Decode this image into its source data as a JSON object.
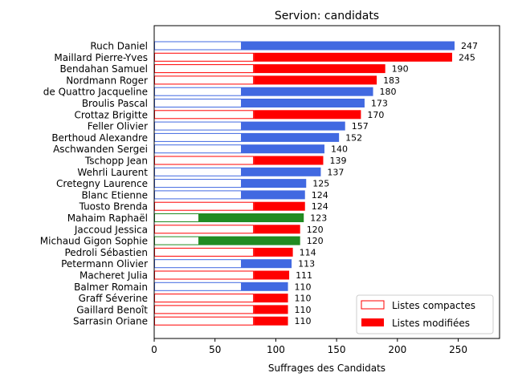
{
  "chart_data": {
    "type": "bar",
    "orientation": "horizontal",
    "title": "Servion: candidats",
    "xlabel": "Suffrages des Candidats",
    "ylabel": "",
    "xlim": [
      0,
      284
    ],
    "xticks": [
      0,
      50,
      100,
      150,
      200,
      250
    ],
    "grid": false,
    "legend_position": "lower right",
    "legend": [
      {
        "label": "Listes compactes",
        "style": "outline",
        "color": "#ff0000"
      },
      {
        "label": "Listes modifiées",
        "style": "filled",
        "color": "#ff0000"
      }
    ],
    "colors": {
      "blue": "#4169e1",
      "red": "#ff0000",
      "green": "#228b22"
    },
    "candidates": [
      {
        "name": "Ruch Daniel",
        "total": 247,
        "compact": 72,
        "color": "blue"
      },
      {
        "name": "Maillard Pierre-Yves",
        "total": 245,
        "compact": 82,
        "color": "red"
      },
      {
        "name": "Bendahan Samuel",
        "total": 190,
        "compact": 82,
        "color": "red"
      },
      {
        "name": "Nordmann Roger",
        "total": 183,
        "compact": 82,
        "color": "red"
      },
      {
        "name": "de Quattro Jacqueline",
        "total": 180,
        "compact": 72,
        "color": "blue"
      },
      {
        "name": "Broulis Pascal",
        "total": 173,
        "compact": 72,
        "color": "blue"
      },
      {
        "name": "Crottaz Brigitte",
        "total": 170,
        "compact": 82,
        "color": "red"
      },
      {
        "name": "Feller Olivier",
        "total": 157,
        "compact": 72,
        "color": "blue"
      },
      {
        "name": "Berthoud Alexandre",
        "total": 152,
        "compact": 72,
        "color": "blue"
      },
      {
        "name": "Aschwanden Sergei",
        "total": 140,
        "compact": 72,
        "color": "blue"
      },
      {
        "name": "Tschopp Jean",
        "total": 139,
        "compact": 82,
        "color": "red"
      },
      {
        "name": "Wehrli Laurent",
        "total": 137,
        "compact": 72,
        "color": "blue"
      },
      {
        "name": "Cretegny Laurence",
        "total": 125,
        "compact": 72,
        "color": "blue"
      },
      {
        "name": "Blanc Etienne",
        "total": 124,
        "compact": 72,
        "color": "blue"
      },
      {
        "name": "Tuosto Brenda",
        "total": 124,
        "compact": 82,
        "color": "red"
      },
      {
        "name": "Mahaim Raphaël",
        "total": 123,
        "compact": 37,
        "color": "green"
      },
      {
        "name": "Jaccoud Jessica",
        "total": 120,
        "compact": 82,
        "color": "red"
      },
      {
        "name": "Michaud Gigon Sophie",
        "total": 120,
        "compact": 37,
        "color": "green"
      },
      {
        "name": "Pedroli Sébastien",
        "total": 114,
        "compact": 82,
        "color": "red"
      },
      {
        "name": "Petermann Olivier",
        "total": 113,
        "compact": 72,
        "color": "blue"
      },
      {
        "name": "Macheret Julia",
        "total": 111,
        "compact": 82,
        "color": "red"
      },
      {
        "name": "Balmer Romain",
        "total": 110,
        "compact": 72,
        "color": "blue"
      },
      {
        "name": "Graff Séverine",
        "total": 110,
        "compact": 82,
        "color": "red"
      },
      {
        "name": "Gaillard Benoît",
        "total": 110,
        "compact": 82,
        "color": "red"
      },
      {
        "name": "Sarrasin Oriane",
        "total": 110,
        "compact": 82,
        "color": "red"
      }
    ]
  }
}
